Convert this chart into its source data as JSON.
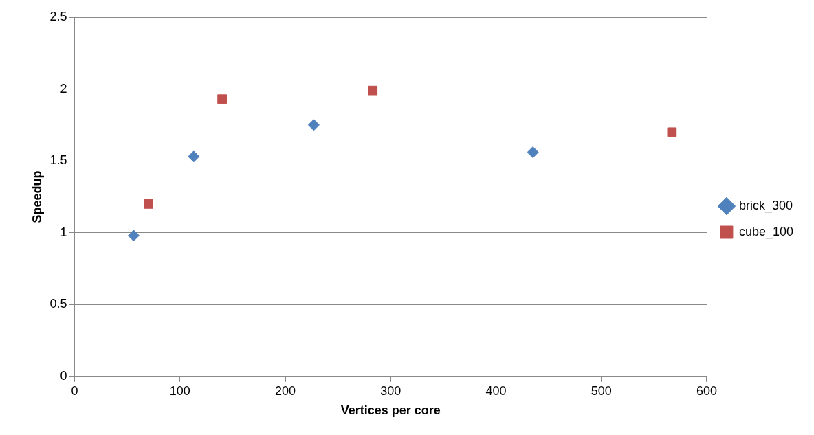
{
  "chart_data": {
    "type": "scatter",
    "xlabel": "Vertices per core",
    "ylabel": "Speedup",
    "xlim": [
      0,
      600
    ],
    "xticks": [
      0,
      100,
      200,
      300,
      400,
      500,
      600
    ],
    "ylim": [
      0,
      2.5
    ],
    "yticks": [
      0,
      0.5,
      1,
      1.5,
      2,
      2.5
    ],
    "grid": "y",
    "legend": "right",
    "series": [
      {
        "name": "brick_300",
        "color": "#4f81bd",
        "marker": "diamond",
        "x": [
          56,
          113,
          227,
          435
        ],
        "values": [
          0.98,
          1.53,
          1.75,
          1.56
        ]
      },
      {
        "name": "cube_100",
        "color": "#c0504d",
        "marker": "square",
        "x": [
          70,
          140,
          283,
          567
        ],
        "values": [
          1.2,
          1.93,
          1.99,
          1.7
        ]
      }
    ]
  }
}
